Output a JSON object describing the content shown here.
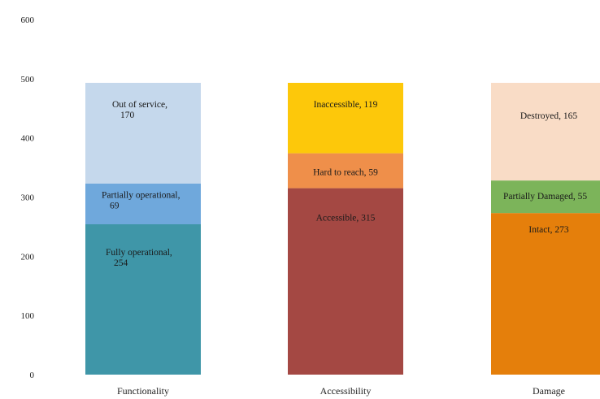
{
  "chart_data": {
    "type": "bar",
    "stacked": true,
    "ylim": [
      0,
      600
    ],
    "yticks": [
      0,
      100,
      200,
      300,
      400,
      500,
      600
    ],
    "grid": false,
    "legend": "none",
    "categories": [
      "Functionality",
      "Accessibility",
      "Damage"
    ],
    "stacks": [
      {
        "category": "Functionality",
        "segments": [
          {
            "value": 254,
            "label_lines": [
              "Fully operational,",
              "254"
            ],
            "color": "#3f96a8"
          },
          {
            "value": 69,
            "label_lines": [
              "Partially operational,",
              "69"
            ],
            "color": "#6fa8dc"
          },
          {
            "value": 170,
            "label_lines": [
              "Out of service,",
              "170"
            ],
            "color": "#c5d8ec"
          }
        ]
      },
      {
        "category": "Accessibility",
        "segments": [
          {
            "value": 315,
            "label_lines": [
              "Accessible,  315"
            ],
            "color": "#a44843"
          },
          {
            "value": 59,
            "label_lines": [
              "Hard to reach, 59"
            ],
            "color": "#ef8f4a"
          },
          {
            "value": 119,
            "label_lines": [
              "Inaccessible, 119"
            ],
            "color": "#fdc80a"
          }
        ]
      },
      {
        "category": "Damage",
        "segments": [
          {
            "value": 273,
            "label_lines": [
              "Intact, 273"
            ],
            "color": "#e57f0b"
          },
          {
            "value": 55,
            "label_lines": [
              "Partially Damaged, 55"
            ],
            "color": "#7cb45a"
          },
          {
            "value": 165,
            "label_lines": [
              "Destroyed, 165"
            ],
            "color": "#f9dcc6"
          }
        ]
      }
    ]
  }
}
